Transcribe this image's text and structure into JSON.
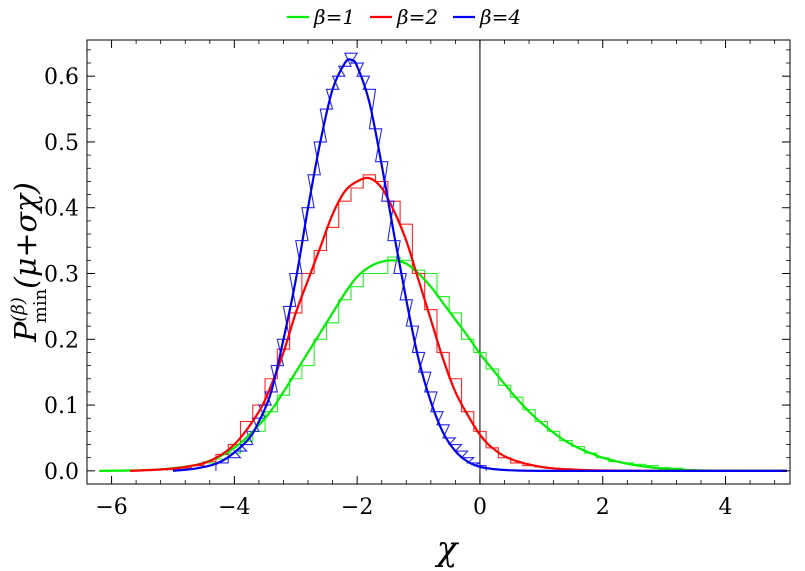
{
  "chart_data": {
    "type": "line",
    "xlabel": "χ",
    "ylabel": "P(β)min(μ+σχ)",
    "ylabel_parts": {
      "base": "P",
      "sup": "(β)",
      "sub": "min",
      "arg": "(μ+σχ)"
    },
    "xlim": [
      -6.4,
      5.05
    ],
    "ylim": [
      -0.02,
      0.655
    ],
    "xticks": [
      -6,
      -4,
      -2,
      0,
      2,
      4
    ],
    "xtick_labels": [
      "−6",
      "−4",
      "−2",
      "0",
      "2",
      "4"
    ],
    "yticks": [
      0.0,
      0.1,
      0.2,
      0.3,
      0.4,
      0.5,
      0.6
    ],
    "ytick_labels": [
      "0.0",
      "0.1",
      "0.2",
      "0.3",
      "0.4",
      "0.5",
      "0.6"
    ],
    "vertical_line_x": 0,
    "legend_position": "top-center",
    "series": [
      {
        "name": "β=1",
        "color": "#00ee00",
        "curve": {
          "x": [
            -6.2,
            -5.5,
            -5.0,
            -4.5,
            -4.0,
            -3.5,
            -3.2,
            -3.0,
            -2.8,
            -2.6,
            -2.4,
            -2.2,
            -2.0,
            -1.8,
            -1.6,
            -1.4,
            -1.2,
            -1.0,
            -0.8,
            -0.6,
            -0.4,
            -0.2,
            0.0,
            0.2,
            0.4,
            0.6,
            0.8,
            1.0,
            1.2,
            1.4,
            1.6,
            1.8,
            2.0,
            2.2,
            2.5,
            3.0,
            3.5,
            4.0,
            5.0
          ],
          "y": [
            0.0,
            0.001,
            0.004,
            0.012,
            0.035,
            0.08,
            0.12,
            0.15,
            0.18,
            0.21,
            0.24,
            0.27,
            0.295,
            0.31,
            0.318,
            0.32,
            0.315,
            0.3,
            0.28,
            0.255,
            0.23,
            0.205,
            0.178,
            0.155,
            0.132,
            0.11,
            0.09,
            0.073,
            0.058,
            0.045,
            0.035,
            0.027,
            0.02,
            0.015,
            0.009,
            0.003,
            0.001,
            0.0003,
            0.0
          ]
        },
        "histogram": {
          "x": [
            -5.0,
            -4.8,
            -4.6,
            -4.4,
            -4.2,
            -4.0,
            -3.8,
            -3.6,
            -3.4,
            -3.2,
            -3.0,
            -2.8,
            -2.6,
            -2.4,
            -2.2,
            -2.0,
            -1.8,
            -1.6,
            -1.4,
            -1.2,
            -1.0,
            -0.8,
            -0.6,
            -0.4,
            -0.2,
            0.0,
            0.2,
            0.4,
            0.6,
            0.8,
            1.0,
            1.2,
            1.4,
            1.6,
            1.8,
            2.0,
            2.2,
            2.4,
            2.6,
            2.8,
            3.0,
            3.2,
            3.4
          ],
          "y": [
            0.002,
            0.004,
            0.008,
            0.012,
            0.018,
            0.027,
            0.045,
            0.06,
            0.09,
            0.115,
            0.14,
            0.16,
            0.2,
            0.225,
            0.26,
            0.28,
            0.3,
            0.3,
            0.325,
            0.32,
            0.305,
            0.3,
            0.265,
            0.24,
            0.2,
            0.18,
            0.155,
            0.13,
            0.112,
            0.093,
            0.075,
            0.06,
            0.046,
            0.037,
            0.027,
            0.02,
            0.014,
            0.012,
            0.01,
            0.008,
            0.005,
            0.004,
            0.002
          ]
        }
      },
      {
        "name": "β=2",
        "color": "#ff0000",
        "curve": {
          "x": [
            -5.7,
            -5.2,
            -4.8,
            -4.4,
            -4.0,
            -3.6,
            -3.4,
            -3.2,
            -3.0,
            -2.8,
            -2.6,
            -2.4,
            -2.2,
            -2.0,
            -1.8,
            -1.6,
            -1.4,
            -1.2,
            -1.0,
            -0.8,
            -0.6,
            -0.4,
            -0.2,
            0.0,
            0.2,
            0.5,
            1.0,
            1.5,
            2.0,
            3.0,
            4.0,
            5.0
          ],
          "y": [
            0.0,
            0.002,
            0.006,
            0.015,
            0.04,
            0.09,
            0.13,
            0.18,
            0.24,
            0.29,
            0.34,
            0.39,
            0.425,
            0.44,
            0.445,
            0.43,
            0.395,
            0.35,
            0.29,
            0.23,
            0.17,
            0.12,
            0.085,
            0.055,
            0.035,
            0.018,
            0.006,
            0.002,
            0.0005,
            0.0,
            0.0,
            0.0
          ]
        },
        "histogram": {
          "x": [
            -5.0,
            -4.8,
            -4.6,
            -4.4,
            -4.2,
            -4.0,
            -3.8,
            -3.6,
            -3.4,
            -3.2,
            -3.0,
            -2.8,
            -2.6,
            -2.4,
            -2.2,
            -2.0,
            -1.8,
            -1.6,
            -1.4,
            -1.2,
            -1.0,
            -0.8,
            -0.6,
            -0.4,
            -0.2,
            0.0,
            0.2,
            0.4,
            0.6,
            0.8,
            1.0,
            1.2,
            1.4,
            1.6,
            1.8
          ],
          "y": [
            0.002,
            0.004,
            0.008,
            0.014,
            0.025,
            0.04,
            0.075,
            0.1,
            0.14,
            0.185,
            0.24,
            0.3,
            0.335,
            0.37,
            0.41,
            0.43,
            0.45,
            0.44,
            0.41,
            0.375,
            0.3,
            0.245,
            0.18,
            0.14,
            0.09,
            0.06,
            0.035,
            0.02,
            0.012,
            0.008,
            0.006,
            0.004,
            0.003,
            0.002,
            0.001
          ]
        }
      },
      {
        "name": "β=4",
        "color": "#0000ee",
        "curve": {
          "x": [
            -5.0,
            -4.6,
            -4.2,
            -3.8,
            -3.6,
            -3.4,
            -3.2,
            -3.0,
            -2.8,
            -2.6,
            -2.4,
            -2.2,
            -2.1,
            -2.0,
            -1.8,
            -1.6,
            -1.4,
            -1.2,
            -1.0,
            -0.8,
            -0.6,
            -0.4,
            -0.2,
            0.0,
            0.3,
            0.6,
            1.0,
            2.0,
            3.0,
            5.0
          ],
          "y": [
            0.0,
            0.004,
            0.015,
            0.045,
            0.075,
            0.12,
            0.2,
            0.29,
            0.4,
            0.5,
            0.58,
            0.62,
            0.625,
            0.615,
            0.56,
            0.465,
            0.36,
            0.26,
            0.17,
            0.105,
            0.058,
            0.03,
            0.014,
            0.006,
            0.002,
            0.0005,
            0.0,
            0.0,
            0.0,
            0.0
          ]
        },
        "histogram": {
          "x": [
            -4.2,
            -4.0,
            -3.9,
            -3.8,
            -3.7,
            -3.6,
            -3.5,
            -3.4,
            -3.3,
            -3.2,
            -3.1,
            -3.0,
            -2.9,
            -2.8,
            -2.7,
            -2.6,
            -2.5,
            -2.4,
            -2.3,
            -2.2,
            -2.1,
            -2.0,
            -1.9,
            -1.8,
            -1.7,
            -1.6,
            -1.5,
            -1.4,
            -1.3,
            -1.2,
            -1.1,
            -1.0,
            -0.9,
            -0.8,
            -0.7,
            -0.6,
            -0.5,
            -0.4,
            -0.3,
            -0.2,
            -0.1,
            0.0
          ],
          "y": [
            0.012,
            0.02,
            0.03,
            0.04,
            0.06,
            0.08,
            0.1,
            0.12,
            0.16,
            0.2,
            0.25,
            0.3,
            0.35,
            0.4,
            0.45,
            0.5,
            0.55,
            0.58,
            0.6,
            0.615,
            0.635,
            0.62,
            0.6,
            0.58,
            0.52,
            0.47,
            0.41,
            0.35,
            0.3,
            0.26,
            0.22,
            0.18,
            0.15,
            0.12,
            0.09,
            0.07,
            0.05,
            0.04,
            0.03,
            0.02,
            0.012,
            0.008
          ]
        }
      }
    ]
  }
}
